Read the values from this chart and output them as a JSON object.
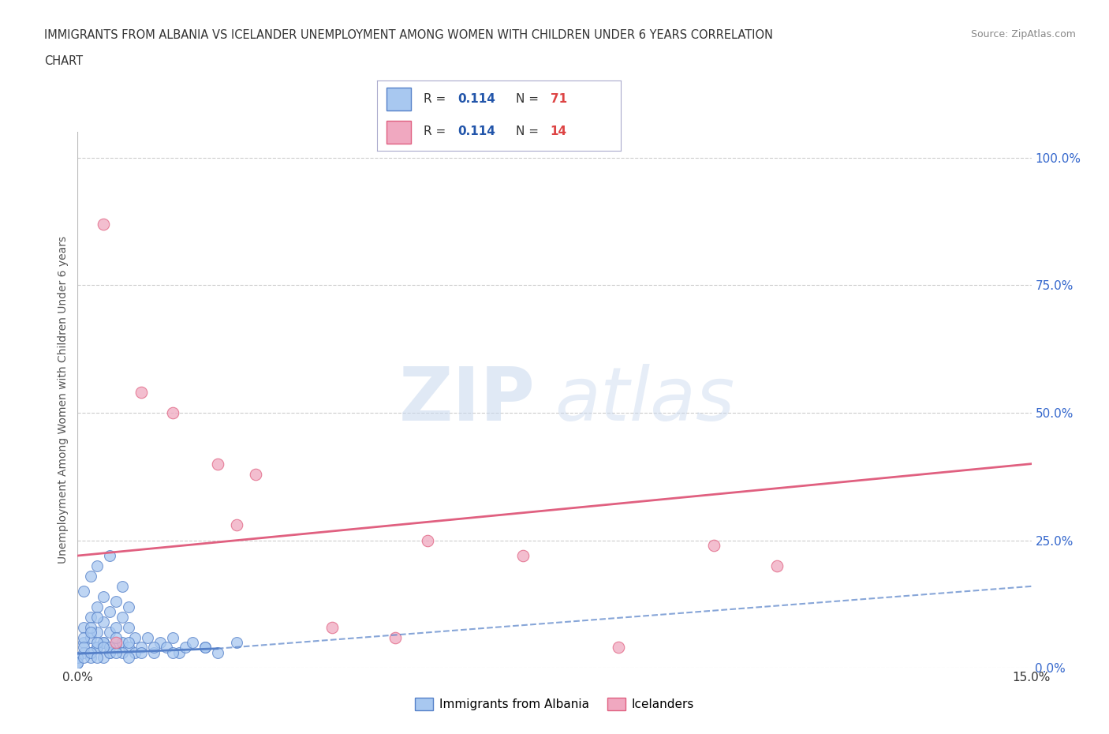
{
  "title_line1": "IMMIGRANTS FROM ALBANIA VS ICELANDER UNEMPLOYMENT AMONG WOMEN WITH CHILDREN UNDER 6 YEARS CORRELATION",
  "title_line2": "CHART",
  "source": "Source: ZipAtlas.com",
  "ylabel": "Unemployment Among Women with Children Under 6 years",
  "r_albania": 0.114,
  "n_albania": 71,
  "r_iceland": 0.114,
  "n_iceland": 14,
  "xlim": [
    0.0,
    0.15
  ],
  "ylim": [
    0.0,
    1.05
  ],
  "yticks_right": [
    0.0,
    0.25,
    0.5,
    0.75,
    1.0
  ],
  "ytick_labels_right": [
    "0.0%",
    "25.0%",
    "50.0%",
    "75.0%",
    "100.0%"
  ],
  "color_albania": "#a8c8f0",
  "color_iceland": "#f0a8c0",
  "color_line_albania": "#5580c8",
  "color_line_iceland": "#e06080",
  "color_legend_text_r": "#2255aa",
  "color_legend_text_n": "#dd4444",
  "background_color": "#ffffff",
  "scatter_albania": {
    "x": [
      0.0,
      0.001,
      0.001,
      0.001,
      0.002,
      0.002,
      0.002,
      0.002,
      0.003,
      0.003,
      0.003,
      0.003,
      0.004,
      0.004,
      0.004,
      0.005,
      0.005,
      0.005,
      0.005,
      0.006,
      0.006,
      0.006,
      0.007,
      0.007,
      0.007,
      0.008,
      0.008,
      0.008,
      0.009,
      0.009,
      0.0,
      0.001,
      0.001,
      0.002,
      0.002,
      0.003,
      0.003,
      0.004,
      0.004,
      0.005,
      0.0,
      0.001,
      0.002,
      0.003,
      0.005,
      0.006,
      0.007,
      0.008,
      0.01,
      0.011,
      0.012,
      0.013,
      0.014,
      0.015,
      0.016,
      0.017,
      0.018,
      0.02,
      0.022,
      0.025,
      0.0,
      0.001,
      0.002,
      0.003,
      0.004,
      0.006,
      0.008,
      0.01,
      0.012,
      0.015,
      0.02
    ],
    "y": [
      0.02,
      0.05,
      0.08,
      0.15,
      0.03,
      0.06,
      0.1,
      0.18,
      0.04,
      0.07,
      0.12,
      0.2,
      0.05,
      0.09,
      0.14,
      0.03,
      0.07,
      0.11,
      0.22,
      0.04,
      0.08,
      0.13,
      0.05,
      0.1,
      0.16,
      0.04,
      0.08,
      0.12,
      0.03,
      0.06,
      0.01,
      0.03,
      0.06,
      0.02,
      0.08,
      0.04,
      0.1,
      0.02,
      0.05,
      0.03,
      0.02,
      0.04,
      0.07,
      0.05,
      0.04,
      0.06,
      0.03,
      0.05,
      0.04,
      0.06,
      0.03,
      0.05,
      0.04,
      0.06,
      0.03,
      0.04,
      0.05,
      0.04,
      0.03,
      0.05,
      0.01,
      0.02,
      0.03,
      0.02,
      0.04,
      0.03,
      0.02,
      0.03,
      0.04,
      0.03,
      0.04
    ]
  },
  "scatter_iceland": {
    "x": [
      0.004,
      0.01,
      0.015,
      0.022,
      0.028,
      0.04,
      0.055,
      0.07,
      0.085,
      0.1,
      0.11,
      0.025,
      0.006,
      0.05
    ],
    "y": [
      0.87,
      0.54,
      0.5,
      0.4,
      0.38,
      0.08,
      0.25,
      0.22,
      0.04,
      0.24,
      0.2,
      0.28,
      0.05,
      0.06
    ]
  },
  "trendline_albania_solid": {
    "x": [
      0.0,
      0.022
    ],
    "y": [
      0.028,
      0.038
    ]
  },
  "trendline_albania_dashed": {
    "x": [
      0.022,
      0.15
    ],
    "y": [
      0.038,
      0.16
    ]
  },
  "trendline_iceland": {
    "x": [
      0.0,
      0.15
    ],
    "y": [
      0.22,
      0.4
    ]
  }
}
